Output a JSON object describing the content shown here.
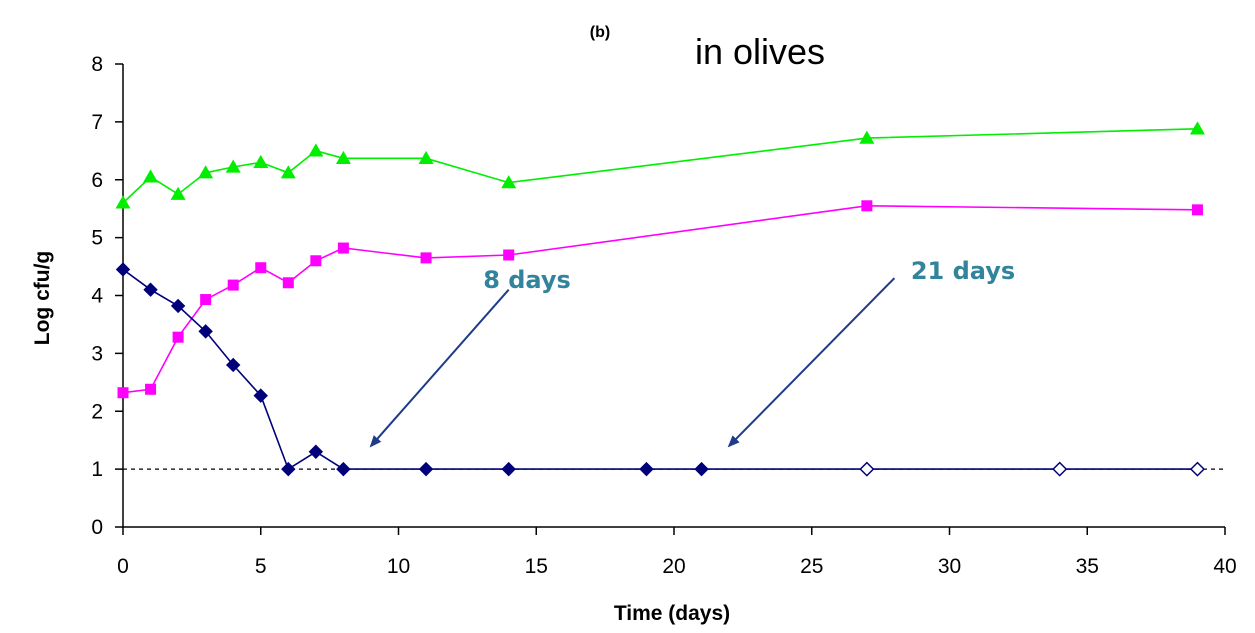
{
  "chart_data": {
    "type": "line",
    "panel_label": "(b)",
    "title": "in olives",
    "xlabel": "Time (days)",
    "ylabel": "Log cfu/g",
    "xlim": [
      0,
      40
    ],
    "ylim": [
      0,
      8
    ],
    "xticks": [
      0,
      5,
      10,
      15,
      20,
      25,
      30,
      35,
      40
    ],
    "yticks": [
      0,
      1,
      2,
      3,
      4,
      5,
      6,
      7,
      8
    ],
    "grid": false,
    "colors": {
      "series_green": "#00ee00",
      "series_magenta": "#ff00ff",
      "series_navy": "#00007a",
      "annotation": "#31849b",
      "arrow": "#1f3b8a"
    },
    "series": [
      {
        "marker": "triangle",
        "color": "#00ee00",
        "x": [
          0,
          1,
          2,
          3,
          4,
          5,
          6,
          7,
          8,
          11,
          14,
          27,
          39
        ],
        "y": [
          5.6,
          6.05,
          5.75,
          6.12,
          6.22,
          6.3,
          6.12,
          6.5,
          6.37,
          6.37,
          5.95,
          6.72,
          6.88
        ]
      },
      {
        "marker": "square",
        "color": "#ff00ff",
        "x": [
          0,
          1,
          2,
          3,
          4,
          5,
          6,
          7,
          8,
          11,
          14,
          27,
          39
        ],
        "y": [
          2.32,
          2.38,
          3.28,
          3.93,
          4.18,
          4.48,
          4.22,
          4.6,
          4.82,
          4.65,
          4.7,
          5.55,
          5.48
        ]
      },
      {
        "marker": "diamond",
        "color": "#00007a",
        "x": [
          0,
          1,
          2,
          3,
          4,
          5,
          6,
          7,
          8,
          11,
          14,
          19,
          21,
          27,
          34,
          39
        ],
        "y": [
          4.45,
          4.1,
          3.82,
          3.38,
          2.8,
          2.27,
          1.0,
          1.3,
          1.0,
          1.0,
          1.0,
          1.0,
          1.0,
          1.0,
          1.0,
          1.0
        ],
        "open_from_x": 27
      }
    ],
    "reference_line": {
      "y": 1,
      "style": "dashed"
    },
    "annotations": [
      {
        "text": "8 days",
        "arrow_from": [
          14,
          4.1
        ],
        "arrow_to": [
          9,
          1.4
        ]
      },
      {
        "text": "21 days",
        "arrow_from": [
          28,
          4.3
        ],
        "arrow_to": [
          22,
          1.4
        ]
      }
    ]
  }
}
